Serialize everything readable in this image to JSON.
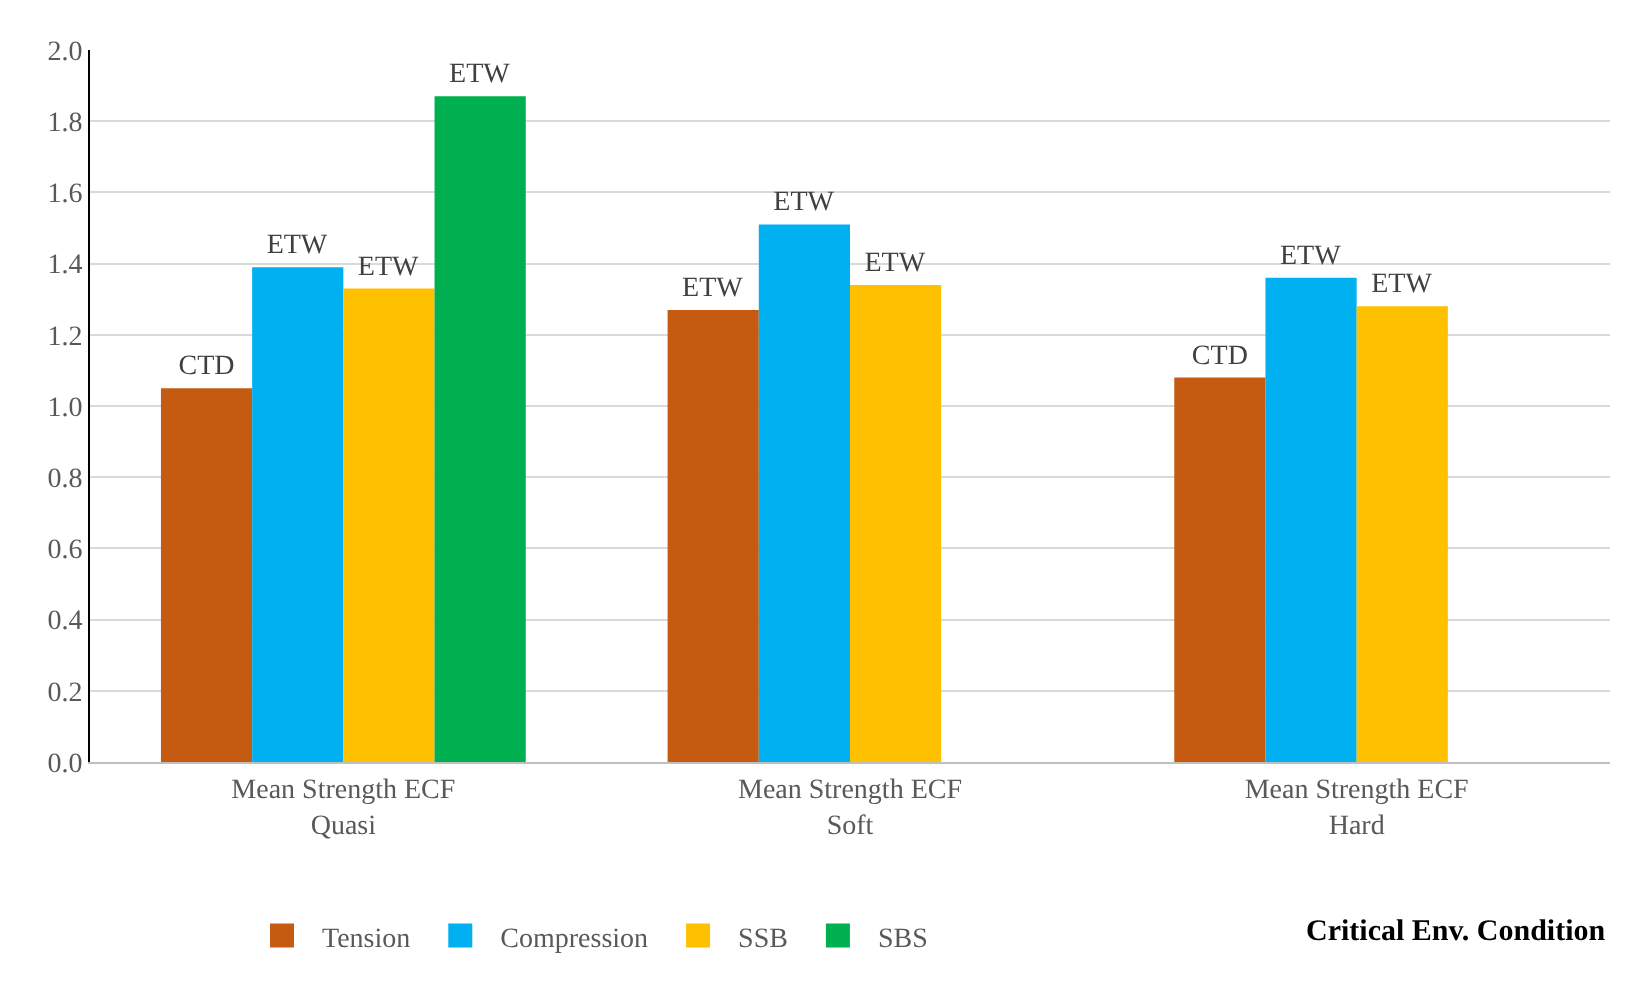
{
  "chart_data": {
    "type": "bar",
    "categories": [
      "Mean Strength ECF\nQuasi",
      "Mean Strength ECF\nSoft",
      "Mean Strength ECF\nHard"
    ],
    "series": [
      {
        "name": "Tension",
        "color": "#c55a11",
        "values": [
          1.05,
          1.27,
          1.08
        ],
        "value_labels": [
          "CTD",
          "ETW",
          "CTD"
        ]
      },
      {
        "name": "Compression",
        "color": "#00b0f0",
        "values": [
          1.39,
          1.51,
          1.36
        ],
        "value_labels": [
          "ETW",
          "ETW",
          "ETW"
        ]
      },
      {
        "name": "SSB",
        "color": "#ffc000",
        "values": [
          1.33,
          1.34,
          1.28
        ],
        "value_labels": [
          "ETW",
          "ETW",
          "ETW"
        ]
      },
      {
        "name": "SBS",
        "color": "#00b050",
        "values": [
          1.87,
          null,
          null
        ],
        "value_labels": [
          "ETW",
          null,
          null
        ]
      }
    ],
    "ylim": [
      0,
      2.0
    ],
    "yticks": [
      {
        "value": 0,
        "label": "0.0"
      },
      {
        "value": 0.2,
        "label": "0.2"
      },
      {
        "value": 0.4,
        "label": "0.4"
      },
      {
        "value": 0.6,
        "label": "0.6"
      },
      {
        "value": 0.8,
        "label": "0.8"
      },
      {
        "value": 1.0,
        "label": "1.0"
      },
      {
        "value": 1.2,
        "label": "1.2"
      },
      {
        "value": 1.4,
        "label": "1.4"
      },
      {
        "value": 1.6,
        "label": "1.6"
      },
      {
        "value": 1.8,
        "label": "1.8"
      },
      {
        "value": 2.0,
        "label": "2.0"
      }
    ],
    "grid": "y",
    "legend": "bottom",
    "annotations": [
      "Critical Env. Condition"
    ]
  }
}
